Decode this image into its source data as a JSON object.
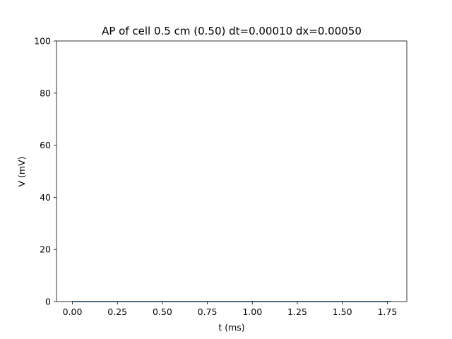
{
  "chart_data": {
    "type": "line",
    "title": "AP of cell 0.5 cm (0.50) dt=0.00010 dx=0.00050",
    "xlabel": "t (ms)",
    "ylabel": "V (mV)",
    "xlim": [
      -0.0885,
      1.8585
    ],
    "ylim": [
      0,
      100
    ],
    "xticks": [
      0.0,
      0.25,
      0.5,
      0.75,
      1.0,
      1.25,
      1.5,
      1.75
    ],
    "xtick_labels": [
      "0.00",
      "0.25",
      "0.50",
      "0.75",
      "1.00",
      "1.25",
      "1.50",
      "1.75"
    ],
    "yticks": [
      0,
      20,
      40,
      60,
      80,
      100
    ],
    "ytick_labels": [
      "0",
      "20",
      "40",
      "60",
      "80",
      "100"
    ],
    "grid": false,
    "series": [
      {
        "color": "#1f77b4",
        "x": [
          0.0,
          1.77
        ],
        "y": [
          0.0,
          0.0
        ]
      }
    ]
  }
}
